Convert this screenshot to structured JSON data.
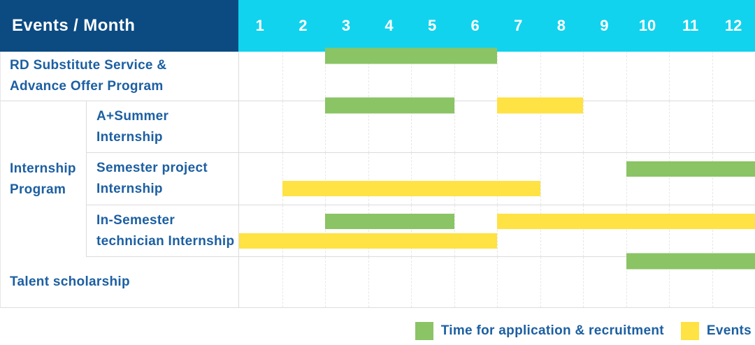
{
  "header": {
    "title": "Events / Month",
    "months": [
      "1",
      "2",
      "3",
      "4",
      "5",
      "6",
      "7",
      "8",
      "9",
      "10",
      "11",
      "12"
    ]
  },
  "groups": [
    {
      "label": "Internship\nProgram"
    }
  ],
  "rows": [
    {
      "label": "RD Substitute Service &\nAdvance Offer Program",
      "lines": 1,
      "bars": [
        {
          "type": "recruitment",
          "start": 3,
          "end": 6,
          "line": 1
        }
      ]
    },
    {
      "label": "A+Summer\nInternship",
      "lines": 1,
      "bars": [
        {
          "type": "recruitment",
          "start": 3,
          "end": 5,
          "line": 1
        },
        {
          "type": "events",
          "start": 7,
          "end": 8,
          "line": 1
        }
      ]
    },
    {
      "label": "Semester project\nInternship",
      "lines": 2,
      "bars": [
        {
          "type": "recruitment",
          "start": 10,
          "end": 12,
          "line": 1
        },
        {
          "type": "events",
          "start": 2,
          "end": 7,
          "line": 2
        }
      ]
    },
    {
      "label": "In-Semester\ntechnician Internship",
      "lines": 2,
      "bars": [
        {
          "type": "recruitment",
          "start": 3,
          "end": 5,
          "line": 1
        },
        {
          "type": "events",
          "start": 7,
          "end": 12,
          "line": 1
        },
        {
          "type": "events",
          "start": 1,
          "end": 6,
          "line": 2
        }
      ]
    },
    {
      "label": "Talent scholarship",
      "lines": 1,
      "bars": [
        {
          "type": "recruitment",
          "start": 10,
          "end": 12,
          "line": 1
        }
      ]
    }
  ],
  "legend": [
    {
      "type": "recruitment",
      "label": "Time for application & recruitment"
    },
    {
      "type": "events",
      "label": "Events"
    }
  ],
  "colors": {
    "header_bg": "#0b4b82",
    "months_bg": "#11d3ee",
    "recruitment": "#8ac464",
    "events": "#ffe243",
    "label_text": "#1c5fa2",
    "header_text": "#ffffff"
  },
  "chart_data": {
    "type": "bar",
    "subtype": "gantt-schedule",
    "title": "Events / Month",
    "x_axis": {
      "label": "Month",
      "ticks": [
        "1",
        "2",
        "3",
        "4",
        "5",
        "6",
        "7",
        "8",
        "9",
        "10",
        "11",
        "12"
      ],
      "range": [
        1,
        12
      ]
    },
    "grid": "dashed-vertical-month-lines",
    "legend_entries": [
      "Time for application & recruitment",
      "Events"
    ],
    "legend_position": "bottom-right",
    "rows": [
      {
        "name": "RD Substitute Service & Advance Offer Program",
        "group": null,
        "segments": [
          {
            "series": "Time for application & recruitment",
            "start_month": 3,
            "end_month": 6
          }
        ]
      },
      {
        "name": "A+Summer Internship",
        "group": "Internship Program",
        "segments": [
          {
            "series": "Time for application & recruitment",
            "start_month": 3,
            "end_month": 5
          },
          {
            "series": "Events",
            "start_month": 7,
            "end_month": 8
          }
        ]
      },
      {
        "name": "Semester project Internship",
        "group": "Internship Program",
        "segments": [
          {
            "series": "Time for application & recruitment",
            "start_month": 10,
            "end_month": 12
          },
          {
            "series": "Events",
            "start_month": 2,
            "end_month": 7
          }
        ]
      },
      {
        "name": "In-Semester technician Internship",
        "group": "Internship Program",
        "segments": [
          {
            "series": "Time for application & recruitment",
            "start_month": 3,
            "end_month": 5
          },
          {
            "series": "Events",
            "start_month": 7,
            "end_month": 12
          },
          {
            "series": "Events",
            "start_month": 1,
            "end_month": 6
          }
        ]
      },
      {
        "name": "Talent scholarship",
        "group": null,
        "segments": [
          {
            "series": "Time for application & recruitment",
            "start_month": 10,
            "end_month": 12
          }
        ]
      }
    ]
  }
}
